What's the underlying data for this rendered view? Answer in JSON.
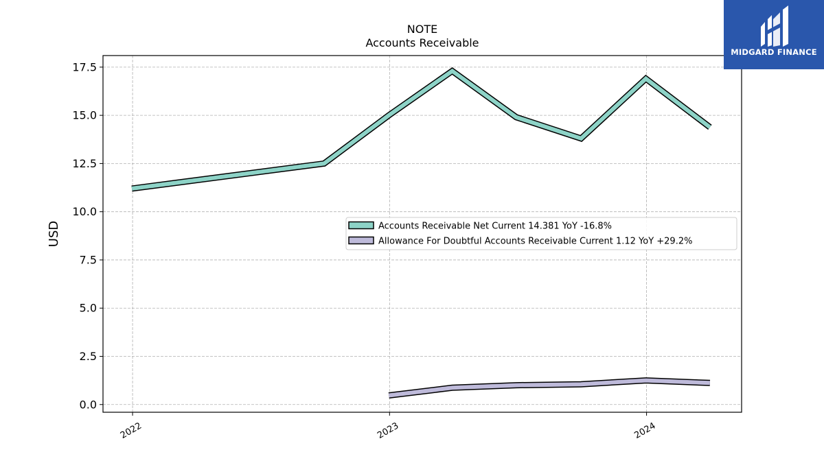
{
  "logo": {
    "text": "MIDGARD FINANCE",
    "icon": "midgard-finance-logo-icon",
    "background": "#2a57ac"
  },
  "chart_data": {
    "type": "line",
    "title": "NOTE",
    "subtitle": "Accounts Receivable",
    "xlabel": "",
    "ylabel": "USD",
    "x_axis": "date",
    "xlim": [
      "2021-11-20",
      "2024-05-15"
    ],
    "ylim": [
      -0.4,
      18.1
    ],
    "y_ticks": [
      0.0,
      2.5,
      5.0,
      7.5,
      10.0,
      12.5,
      15.0,
      17.5
    ],
    "y_tick_labels": [
      "0.0",
      "2.5",
      "5.0",
      "7.5",
      "10.0",
      "12.5",
      "15.0",
      "17.5"
    ],
    "x_ticks": [
      "2022-01-01",
      "2023-01-01",
      "2024-01-01"
    ],
    "x_tick_labels": [
      "2022",
      "2023",
      "2024"
    ],
    "grid": true,
    "legend_position": "center-right",
    "series": [
      {
        "name": "Accounts Receivable Net Current",
        "legend_label": "Accounts Receivable Net Current  14.381 YoY -16.8%",
        "color": "#8dd3c7",
        "x": [
          "2021-12-31",
          "2022-09-30",
          "2022-12-31",
          "2023-03-31",
          "2023-06-30",
          "2023-09-30",
          "2023-12-31",
          "2024-03-31"
        ],
        "values": [
          11.2,
          12.5,
          15.0,
          17.3,
          14.9,
          13.8,
          16.9,
          14.381
        ]
      },
      {
        "name": "Allowance For Doubtful Accounts Receivable Current",
        "legend_label": "Allowance For Doubtful Accounts Receivable Current  1.12 YoY +29.2%",
        "color": "#bebada",
        "x": [
          "2022-12-31",
          "2023-03-31",
          "2023-06-30",
          "2023-09-30",
          "2023-12-31",
          "2024-03-31"
        ],
        "values": [
          0.47,
          0.87,
          1.0,
          1.05,
          1.25,
          1.12
        ]
      }
    ]
  }
}
